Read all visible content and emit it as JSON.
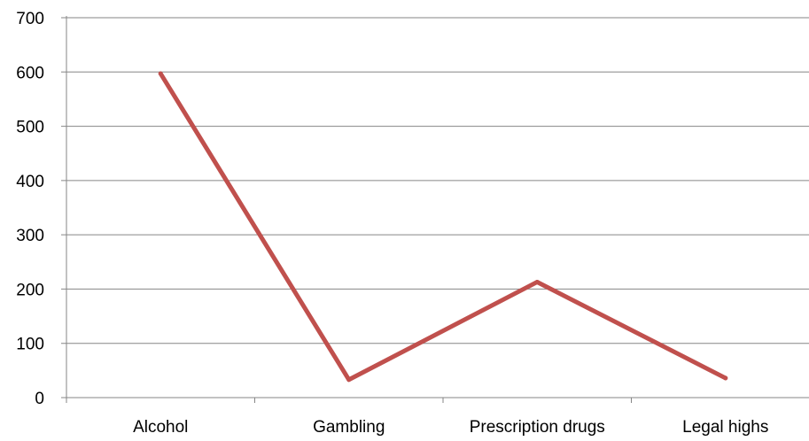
{
  "chart_data": {
    "type": "line",
    "categories": [
      "Alcohol",
      "Gambling",
      "Prescription drugs",
      "Legal highs"
    ],
    "series": [
      {
        "values": [
          597,
          33,
          213,
          36
        ],
        "color": "#C0504D"
      }
    ],
    "ylim": [
      0,
      700
    ],
    "yticks": [
      0,
      100,
      200,
      300,
      400,
      500,
      600,
      700
    ],
    "ytick_labels": [
      "0",
      "100",
      "200",
      "300",
      "400",
      "500",
      "600",
      "700"
    ],
    "grid": true,
    "legend": "none",
    "gridline_color": "#868686",
    "axis_color": "#868686"
  }
}
